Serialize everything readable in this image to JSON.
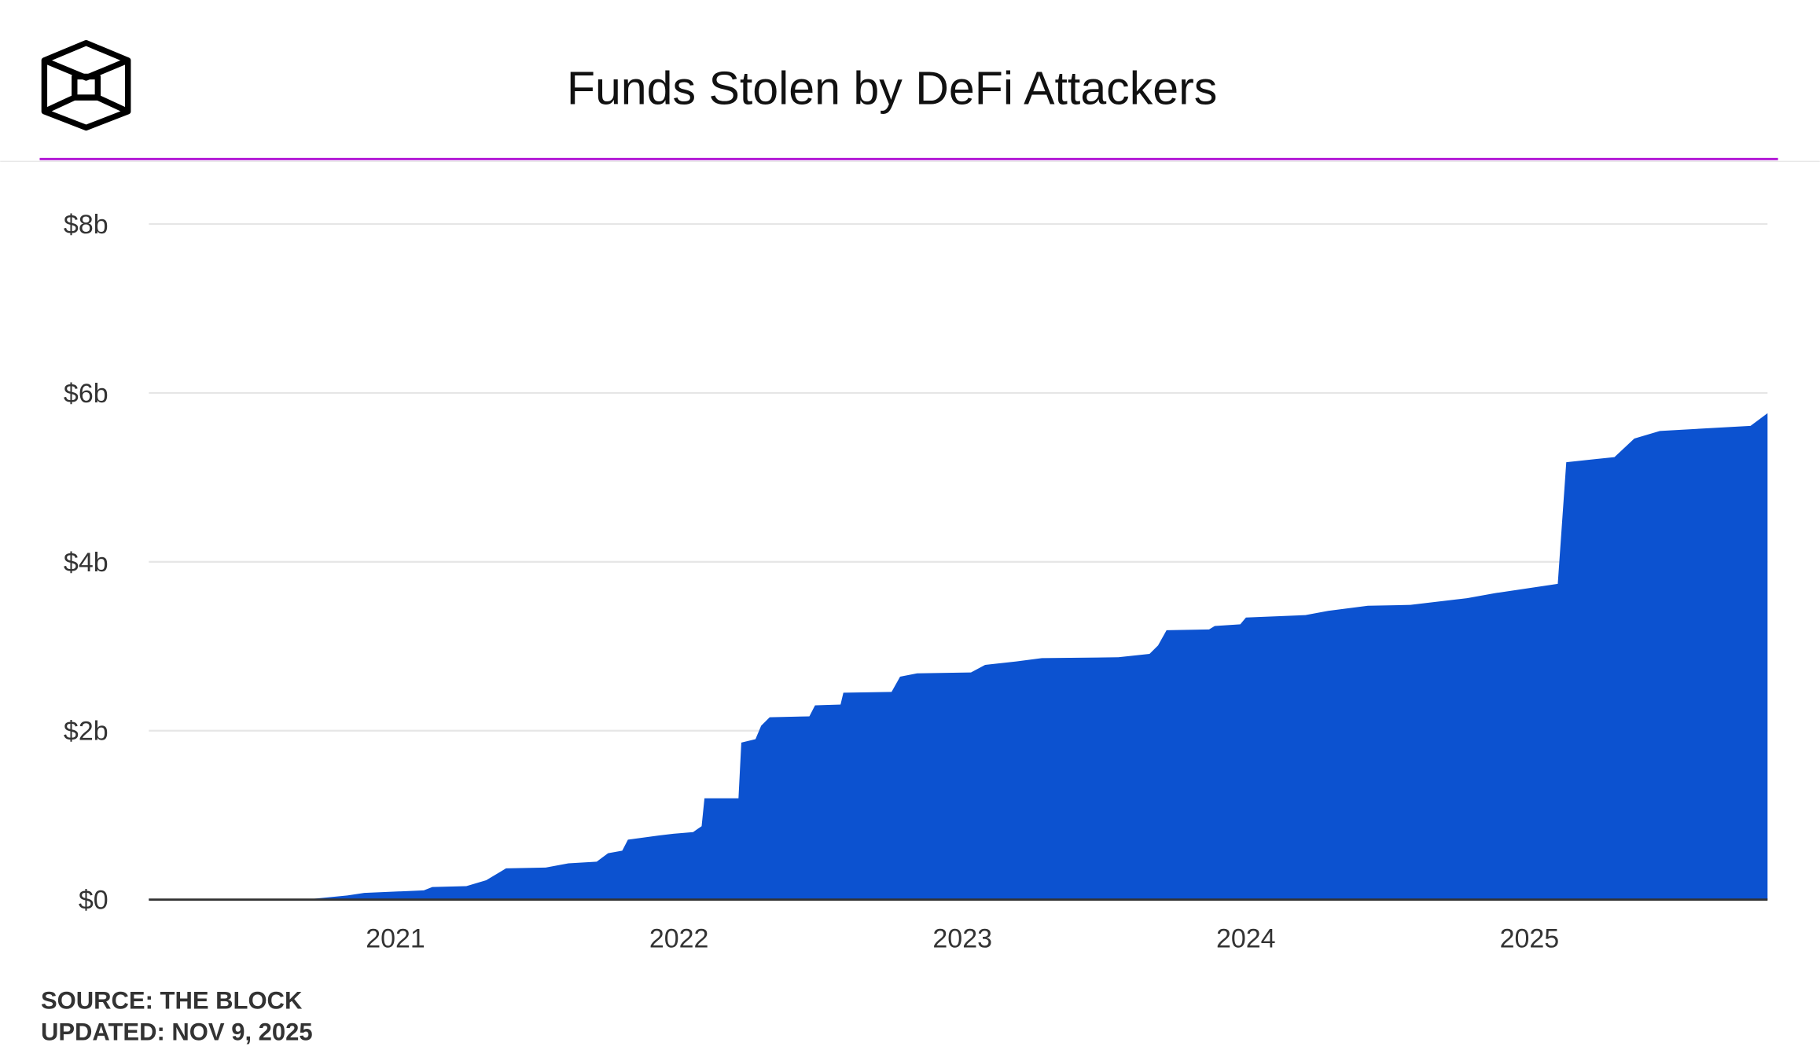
{
  "chart_data": {
    "type": "area",
    "title": "Funds Stolen by DeFi Attackers",
    "source": "SOURCE: THE BLOCK",
    "updated": "UPDATED: NOV 9, 2025",
    "x": [
      2020.13,
      2020.71,
      2020.83,
      2020.89,
      2021.1,
      2021.13,
      2021.25,
      2021.32,
      2021.39,
      2021.53,
      2021.61,
      2021.71,
      2021.75,
      2021.8,
      2021.82,
      2021.93,
      2021.98,
      2022.05,
      2022.08,
      2022.09,
      2022.21,
      2022.22,
      2022.27,
      2022.29,
      2022.32,
      2022.46,
      2022.48,
      2022.57,
      2022.58,
      2022.75,
      2022.78,
      2022.84,
      2023.03,
      2023.08,
      2023.19,
      2023.28,
      2023.55,
      2023.66,
      2023.69,
      2023.72,
      2023.87,
      2023.89,
      2023.98,
      2024.0,
      2024.21,
      2024.29,
      2024.43,
      2024.58,
      2024.78,
      2024.88,
      2025.1,
      2025.13,
      2025.3,
      2025.37,
      2025.46,
      2025.78,
      2025.84
    ],
    "series": [
      {
        "name": "Funds stolen",
        "color": "#0c52d0",
        "values": [
          0.01,
          0.01,
          0.05,
          0.08,
          0.11,
          0.15,
          0.16,
          0.23,
          0.37,
          0.38,
          0.43,
          0.45,
          0.55,
          0.58,
          0.71,
          0.76,
          0.78,
          0.8,
          0.87,
          1.2,
          1.2,
          1.86,
          1.9,
          2.06,
          2.16,
          2.17,
          2.3,
          2.31,
          2.45,
          2.46,
          2.64,
          2.68,
          2.69,
          2.78,
          2.82,
          2.86,
          2.87,
          2.91,
          3.01,
          3.19,
          3.2,
          3.24,
          3.26,
          3.34,
          3.37,
          3.42,
          3.48,
          3.49,
          3.57,
          3.63,
          3.74,
          5.18,
          5.24,
          5.46,
          5.55,
          5.61,
          5.76
        ]
      }
    ],
    "xlim": [
      2020.13,
      2025.84
    ],
    "xticks": [
      2021,
      2022,
      2023,
      2024,
      2025
    ],
    "ylim": [
      0,
      8
    ],
    "yticks": [
      {
        "value": 0,
        "label": "$0"
      },
      {
        "value": 2,
        "label": "$2b"
      },
      {
        "value": 4,
        "label": "$4b"
      },
      {
        "value": 6,
        "label": "$6b"
      },
      {
        "value": 8,
        "label": "$8b"
      }
    ],
    "grid": true
  }
}
